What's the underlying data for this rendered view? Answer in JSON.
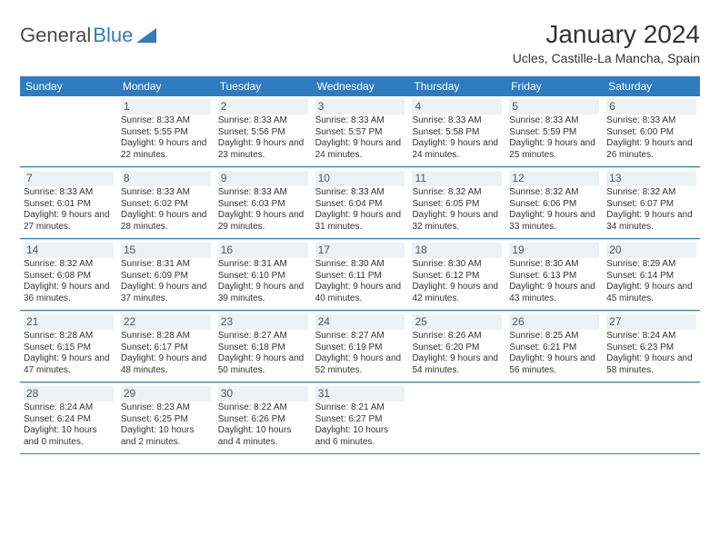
{
  "logo": {
    "textA": "General",
    "textB": "Blue"
  },
  "title": "January 2024",
  "location": "Ucles, Castille-La Mancha, Spain",
  "day_header_bg": "#2f7bbf",
  "day_header_fg": "#ffffff",
  "cell_divider_color": "#2f7bbf",
  "weekdays": [
    "Sunday",
    "Monday",
    "Tuesday",
    "Wednesday",
    "Thursday",
    "Friday",
    "Saturday"
  ],
  "weeks": [
    [
      {
        "day": "",
        "sunrise": "",
        "sunset": "",
        "daylight": ""
      },
      {
        "day": "1",
        "sunrise": "Sunrise: 8:33 AM",
        "sunset": "Sunset: 5:55 PM",
        "daylight": "Daylight: 9 hours and 22 minutes."
      },
      {
        "day": "2",
        "sunrise": "Sunrise: 8:33 AM",
        "sunset": "Sunset: 5:56 PM",
        "daylight": "Daylight: 9 hours and 23 minutes."
      },
      {
        "day": "3",
        "sunrise": "Sunrise: 8:33 AM",
        "sunset": "Sunset: 5:57 PM",
        "daylight": "Daylight: 9 hours and 24 minutes."
      },
      {
        "day": "4",
        "sunrise": "Sunrise: 8:33 AM",
        "sunset": "Sunset: 5:58 PM",
        "daylight": "Daylight: 9 hours and 24 minutes."
      },
      {
        "day": "5",
        "sunrise": "Sunrise: 8:33 AM",
        "sunset": "Sunset: 5:59 PM",
        "daylight": "Daylight: 9 hours and 25 minutes."
      },
      {
        "day": "6",
        "sunrise": "Sunrise: 8:33 AM",
        "sunset": "Sunset: 6:00 PM",
        "daylight": "Daylight: 9 hours and 26 minutes."
      }
    ],
    [
      {
        "day": "7",
        "sunrise": "Sunrise: 8:33 AM",
        "sunset": "Sunset: 6:01 PM",
        "daylight": "Daylight: 9 hours and 27 minutes."
      },
      {
        "day": "8",
        "sunrise": "Sunrise: 8:33 AM",
        "sunset": "Sunset: 6:02 PM",
        "daylight": "Daylight: 9 hours and 28 minutes."
      },
      {
        "day": "9",
        "sunrise": "Sunrise: 8:33 AM",
        "sunset": "Sunset: 6:03 PM",
        "daylight": "Daylight: 9 hours and 29 minutes."
      },
      {
        "day": "10",
        "sunrise": "Sunrise: 8:33 AM",
        "sunset": "Sunset: 6:04 PM",
        "daylight": "Daylight: 9 hours and 31 minutes."
      },
      {
        "day": "11",
        "sunrise": "Sunrise: 8:32 AM",
        "sunset": "Sunset: 6:05 PM",
        "daylight": "Daylight: 9 hours and 32 minutes."
      },
      {
        "day": "12",
        "sunrise": "Sunrise: 8:32 AM",
        "sunset": "Sunset: 6:06 PM",
        "daylight": "Daylight: 9 hours and 33 minutes."
      },
      {
        "day": "13",
        "sunrise": "Sunrise: 8:32 AM",
        "sunset": "Sunset: 6:07 PM",
        "daylight": "Daylight: 9 hours and 34 minutes."
      }
    ],
    [
      {
        "day": "14",
        "sunrise": "Sunrise: 8:32 AM",
        "sunset": "Sunset: 6:08 PM",
        "daylight": "Daylight: 9 hours and 36 minutes."
      },
      {
        "day": "15",
        "sunrise": "Sunrise: 8:31 AM",
        "sunset": "Sunset: 6:09 PM",
        "daylight": "Daylight: 9 hours and 37 minutes."
      },
      {
        "day": "16",
        "sunrise": "Sunrise: 8:31 AM",
        "sunset": "Sunset: 6:10 PM",
        "daylight": "Daylight: 9 hours and 39 minutes."
      },
      {
        "day": "17",
        "sunrise": "Sunrise: 8:30 AM",
        "sunset": "Sunset: 6:11 PM",
        "daylight": "Daylight: 9 hours and 40 minutes."
      },
      {
        "day": "18",
        "sunrise": "Sunrise: 8:30 AM",
        "sunset": "Sunset: 6:12 PM",
        "daylight": "Daylight: 9 hours and 42 minutes."
      },
      {
        "day": "19",
        "sunrise": "Sunrise: 8:30 AM",
        "sunset": "Sunset: 6:13 PM",
        "daylight": "Daylight: 9 hours and 43 minutes."
      },
      {
        "day": "20",
        "sunrise": "Sunrise: 8:29 AM",
        "sunset": "Sunset: 6:14 PM",
        "daylight": "Daylight: 9 hours and 45 minutes."
      }
    ],
    [
      {
        "day": "21",
        "sunrise": "Sunrise: 8:28 AM",
        "sunset": "Sunset: 6:15 PM",
        "daylight": "Daylight: 9 hours and 47 minutes."
      },
      {
        "day": "22",
        "sunrise": "Sunrise: 8:28 AM",
        "sunset": "Sunset: 6:17 PM",
        "daylight": "Daylight: 9 hours and 48 minutes."
      },
      {
        "day": "23",
        "sunrise": "Sunrise: 8:27 AM",
        "sunset": "Sunset: 6:18 PM",
        "daylight": "Daylight: 9 hours and 50 minutes."
      },
      {
        "day": "24",
        "sunrise": "Sunrise: 8:27 AM",
        "sunset": "Sunset: 6:19 PM",
        "daylight": "Daylight: 9 hours and 52 minutes."
      },
      {
        "day": "25",
        "sunrise": "Sunrise: 8:26 AM",
        "sunset": "Sunset: 6:20 PM",
        "daylight": "Daylight: 9 hours and 54 minutes."
      },
      {
        "day": "26",
        "sunrise": "Sunrise: 8:25 AM",
        "sunset": "Sunset: 6:21 PM",
        "daylight": "Daylight: 9 hours and 56 minutes."
      },
      {
        "day": "27",
        "sunrise": "Sunrise: 8:24 AM",
        "sunset": "Sunset: 6:23 PM",
        "daylight": "Daylight: 9 hours and 58 minutes."
      }
    ],
    [
      {
        "day": "28",
        "sunrise": "Sunrise: 8:24 AM",
        "sunset": "Sunset: 6:24 PM",
        "daylight": "Daylight: 10 hours and 0 minutes."
      },
      {
        "day": "29",
        "sunrise": "Sunrise: 8:23 AM",
        "sunset": "Sunset: 6:25 PM",
        "daylight": "Daylight: 10 hours and 2 minutes."
      },
      {
        "day": "30",
        "sunrise": "Sunrise: 8:22 AM",
        "sunset": "Sunset: 6:26 PM",
        "daylight": "Daylight: 10 hours and 4 minutes."
      },
      {
        "day": "31",
        "sunrise": "Sunrise: 8:21 AM",
        "sunset": "Sunset: 6:27 PM",
        "daylight": "Daylight: 10 hours and 6 minutes."
      },
      {
        "day": "",
        "sunrise": "",
        "sunset": "",
        "daylight": ""
      },
      {
        "day": "",
        "sunrise": "",
        "sunset": "",
        "daylight": ""
      },
      {
        "day": "",
        "sunrise": "",
        "sunset": "",
        "daylight": ""
      }
    ]
  ]
}
